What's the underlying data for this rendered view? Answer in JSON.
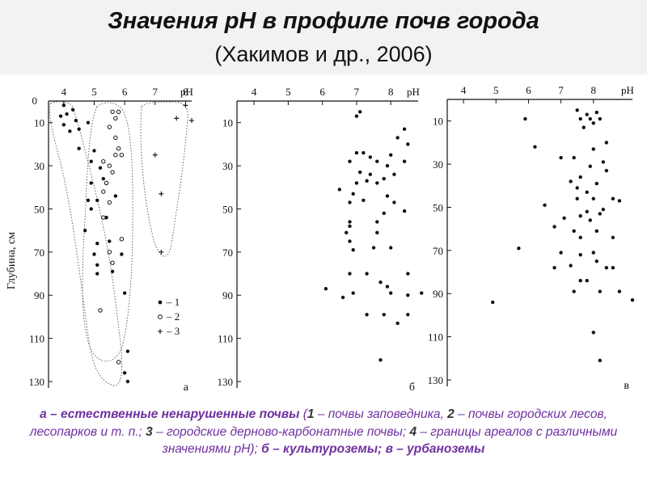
{
  "title": {
    "line1": "Значения рН в профиле почв города",
    "line2": "(Хакимов и др., 2006)"
  },
  "caption": {
    "a_label": "а – естественные ненарушенные почвы",
    "legend_1_num": "1",
    "legend_1_text": " – почвы заповедника, ",
    "legend_2_num": "2",
    "legend_2_text": " – почвы городских лесов, лесопарков и т. п.; ",
    "legend_3_num": "3",
    "legend_3_text": " – городские дерново-карбонатные почвы; ",
    "legend_4_num": "4",
    "legend_4_text": " – границы ареалов с различными значениями рН); ",
    "b_label": "б – культуроземы;",
    "v_label": " в – урбаноземы"
  },
  "chart_data": [
    {
      "type": "scatter",
      "panel_label": "а",
      "xlabel": "pH",
      "ylabel": "Глубина, см",
      "x_ticks": [
        4,
        5,
        6,
        7,
        8
      ],
      "y_ticks": [
        10,
        30,
        50,
        70,
        90,
        110,
        130
      ],
      "xlim": [
        3.5,
        8.2
      ],
      "ylim": [
        0,
        133
      ],
      "legend": [
        "– 1",
        "– 2",
        "– 3"
      ],
      "series": [
        {
          "name": "1",
          "marker": "filled",
          "points": [
            [
              4.0,
              2
            ],
            [
              3.9,
              7
            ],
            [
              4.1,
              6
            ],
            [
              4.0,
              11
            ],
            [
              4.3,
              4
            ],
            [
              4.4,
              9
            ],
            [
              4.5,
              13
            ],
            [
              4.2,
              14
            ],
            [
              4.8,
              10
            ],
            [
              4.5,
              22
            ],
            [
              5.0,
              23
            ],
            [
              4.9,
              28
            ],
            [
              5.2,
              31
            ],
            [
              5.3,
              36
            ],
            [
              4.9,
              38
            ],
            [
              4.8,
              46
            ],
            [
              5.1,
              46
            ],
            [
              4.9,
              50
            ],
            [
              5.4,
              54
            ],
            [
              4.7,
              60
            ],
            [
              5.1,
              66
            ],
            [
              5.5,
              65
            ],
            [
              5.0,
              71
            ],
            [
              5.9,
              71
            ],
            [
              5.1,
              76
            ],
            [
              5.6,
              79
            ],
            [
              5.1,
              80
            ],
            [
              6.0,
              89
            ],
            [
              6.1,
              116
            ],
            [
              6.0,
              126
            ],
            [
              6.1,
              130
            ],
            [
              5.7,
              44
            ]
          ]
        },
        {
          "name": "2",
          "marker": "open",
          "points": [
            [
              5.6,
              5
            ],
            [
              5.8,
              5
            ],
            [
              5.7,
              8
            ],
            [
              5.5,
              12
            ],
            [
              5.7,
              17
            ],
            [
              5.8,
              22
            ],
            [
              5.7,
              25
            ],
            [
              5.5,
              30
            ],
            [
              5.6,
              33
            ],
            [
              5.4,
              38
            ],
            [
              5.3,
              42
            ],
            [
              5.5,
              47
            ],
            [
              5.3,
              54
            ],
            [
              5.9,
              64
            ],
            [
              5.5,
              70
            ],
            [
              5.6,
              75
            ],
            [
              5.2,
              97
            ],
            [
              5.8,
              121
            ],
            [
              5.3,
              28
            ],
            [
              5.9,
              25
            ]
          ]
        },
        {
          "name": "3",
          "marker": "plus",
          "points": [
            [
              8.0,
              2
            ],
            [
              7.7,
              8
            ],
            [
              8.2,
              9
            ],
            [
              7.0,
              25
            ],
            [
              7.2,
              43
            ],
            [
              7.2,
              70
            ]
          ]
        }
      ]
    },
    {
      "type": "scatter",
      "panel_label": "б",
      "xlabel": "pH",
      "ylabel": "",
      "x_ticks": [
        4,
        5,
        6,
        7,
        8
      ],
      "y_ticks": [
        10,
        30,
        50,
        70,
        90,
        110,
        130
      ],
      "xlim": [
        3.5,
        8.8
      ],
      "ylim": [
        0,
        133
      ],
      "series": [
        {
          "name": "",
          "points": [
            [
              7.0,
              7
            ],
            [
              7.1,
              5
            ],
            [
              8.4,
              13
            ],
            [
              8.2,
              17
            ],
            [
              8.5,
              20
            ],
            [
              8.0,
              25
            ],
            [
              7.0,
              24
            ],
            [
              7.2,
              24
            ],
            [
              7.4,
              26
            ],
            [
              6.8,
              28
            ],
            [
              7.6,
              28
            ],
            [
              8.4,
              28
            ],
            [
              7.9,
              30
            ],
            [
              7.1,
              33
            ],
            [
              7.4,
              34
            ],
            [
              7.3,
              37
            ],
            [
              7.0,
              38
            ],
            [
              7.6,
              38
            ],
            [
              7.8,
              36
            ],
            [
              8.1,
              34
            ],
            [
              6.5,
              41
            ],
            [
              6.9,
              43
            ],
            [
              6.8,
              47
            ],
            [
              7.2,
              46
            ],
            [
              8.1,
              47
            ],
            [
              7.9,
              44
            ],
            [
              7.8,
              52
            ],
            [
              8.4,
              51
            ],
            [
              7.6,
              56
            ],
            [
              6.8,
              56
            ],
            [
              6.8,
              58
            ],
            [
              6.7,
              61
            ],
            [
              6.8,
              65
            ],
            [
              7.6,
              61
            ],
            [
              6.9,
              69
            ],
            [
              7.5,
              68
            ],
            [
              8.0,
              68
            ],
            [
              7.3,
              80
            ],
            [
              8.5,
              80
            ],
            [
              6.8,
              80
            ],
            [
              7.7,
              84
            ],
            [
              7.9,
              86
            ],
            [
              8.0,
              89
            ],
            [
              6.1,
              87
            ],
            [
              6.6,
              91
            ],
            [
              6.9,
              89
            ],
            [
              8.5,
              90
            ],
            [
              8.9,
              89
            ],
            [
              7.3,
              99
            ],
            [
              7.8,
              99
            ],
            [
              8.2,
              103
            ],
            [
              8.5,
              99
            ],
            [
              7.7,
              120
            ]
          ]
        }
      ]
    },
    {
      "type": "scatter",
      "panel_label": "в",
      "xlabel": "pH",
      "ylabel": "",
      "x_ticks": [
        4,
        5,
        6,
        7,
        8
      ],
      "y_ticks": [
        10,
        30,
        50,
        70,
        90,
        110,
        130
      ],
      "xlim": [
        3.5,
        9.2
      ],
      "ylim": [
        0,
        133
      ],
      "series": [
        {
          "name": "",
          "points": [
            [
              7.5,
              5
            ],
            [
              7.8,
              7
            ],
            [
              8.1,
              6
            ],
            [
              7.9,
              9
            ],
            [
              8.0,
              11
            ],
            [
              8.2,
              9
            ],
            [
              7.7,
              13
            ],
            [
              7.6,
              9
            ],
            [
              5.9,
              9
            ],
            [
              6.2,
              22
            ],
            [
              7.0,
              27
            ],
            [
              7.4,
              27
            ],
            [
              8.0,
              23
            ],
            [
              8.4,
              20
            ],
            [
              8.3,
              29
            ],
            [
              7.9,
              31
            ],
            [
              8.4,
              33
            ],
            [
              7.6,
              36
            ],
            [
              7.3,
              38
            ],
            [
              8.1,
              39
            ],
            [
              7.5,
              41
            ],
            [
              7.8,
              43
            ],
            [
              7.5,
              46
            ],
            [
              8.0,
              46
            ],
            [
              8.6,
              46
            ],
            [
              8.8,
              47
            ],
            [
              6.5,
              49
            ],
            [
              7.8,
              52
            ],
            [
              8.2,
              53
            ],
            [
              8.3,
              51
            ],
            [
              7.6,
              54
            ],
            [
              7.9,
              56
            ],
            [
              7.1,
              55
            ],
            [
              6.8,
              59
            ],
            [
              7.4,
              61
            ],
            [
              8.1,
              61
            ],
            [
              7.6,
              64
            ],
            [
              8.6,
              64
            ],
            [
              5.7,
              69
            ],
            [
              7.0,
              71
            ],
            [
              8.0,
              71
            ],
            [
              7.6,
              72
            ],
            [
              8.1,
              75
            ],
            [
              7.3,
              77
            ],
            [
              8.4,
              78
            ],
            [
              6.8,
              78
            ],
            [
              7.6,
              84
            ],
            [
              7.8,
              84
            ],
            [
              8.6,
              78
            ],
            [
              7.4,
              89
            ],
            [
              8.2,
              89
            ],
            [
              8.8,
              89
            ],
            [
              4.9,
              94
            ],
            [
              9.2,
              93
            ],
            [
              8.0,
              108
            ],
            [
              8.2,
              121
            ]
          ]
        }
      ]
    }
  ]
}
